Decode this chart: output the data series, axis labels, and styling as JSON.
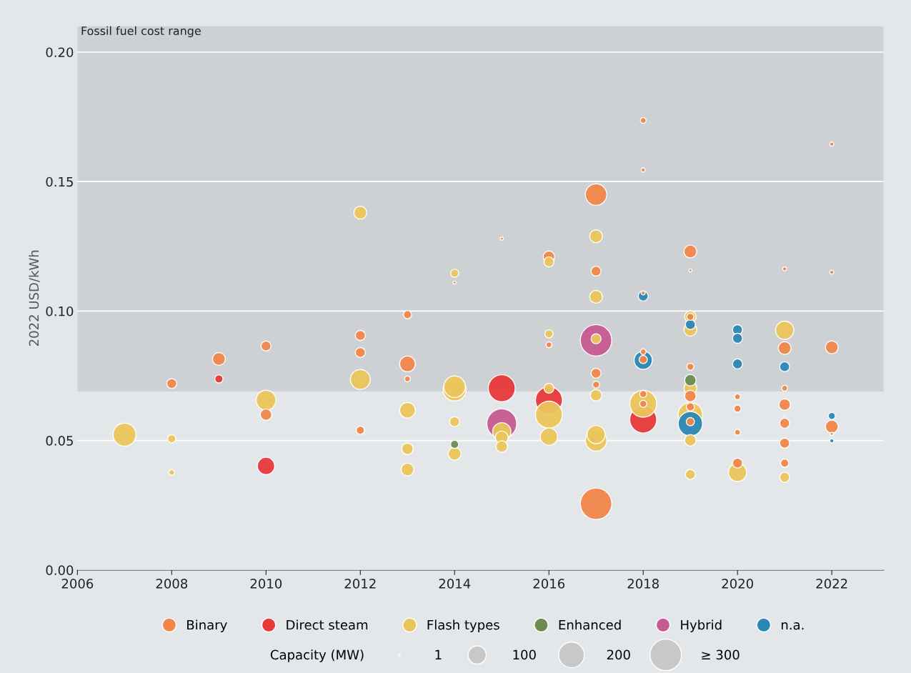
{
  "chart_data": {
    "type": "bubble",
    "ylabel": "2022 USD/kWh",
    "xlim": [
      2006,
      2023.1
    ],
    "xticks": [
      2006,
      2008,
      2010,
      2012,
      2014,
      2016,
      2018,
      2020,
      2022
    ],
    "ylim": [
      0,
      0.21
    ],
    "yticks": [
      {
        "value": 0,
        "label": "0.00"
      },
      {
        "value": 0.05,
        "label": "0.05"
      },
      {
        "value": 0.1,
        "label": "0.10"
      },
      {
        "value": 0.15,
        "label": "0.15"
      },
      {
        "value": 0.2,
        "label": "0.20"
      }
    ],
    "grid": "y",
    "legend": "bottom",
    "marker": "circle",
    "legend_title": "Capacity (MW)",
    "size_legend": [
      1,
      100,
      200,
      {
        "value": 300,
        "label": "≥ 300"
      }
    ],
    "bands": [
      {
        "axis": "y",
        "from": 0.069,
        "to": 0.21,
        "label": "Fossil fuel cost range",
        "color": "#cdd1d4"
      }
    ],
    "series": [
      {
        "name": "Binary",
        "color": "#f0864a",
        "x": [
          2008,
          2009,
          2010,
          2010,
          2012,
          2012,
          2012,
          2013,
          2013,
          2013,
          2014,
          2015,
          2016,
          2016,
          2017,
          2017,
          2017,
          2017,
          2017,
          2018,
          2018,
          2018,
          2018,
          2018,
          2018,
          2018,
          2019,
          2019,
          2019,
          2019,
          2019,
          2019,
          2019,
          2020,
          2020,
          2020,
          2020,
          2021,
          2021,
          2021,
          2021,
          2021,
          2021,
          2021,
          2021,
          2022,
          2022,
          2022,
          2022,
          2022
        ],
        "values": [
          0.072,
          0.0815,
          0.0865,
          0.06,
          0.0906,
          0.084,
          0.054,
          0.0986,
          0.0796,
          0.0738,
          0.111,
          0.128,
          0.121,
          0.087,
          0.145,
          0.1154,
          0.076,
          0.0716,
          0.0256,
          0.1736,
          0.1545,
          0.107,
          0.0843,
          0.0813,
          0.068,
          0.0642,
          0.123,
          0.1157,
          0.0978,
          0.0785,
          0.0672,
          0.063,
          0.0573,
          0.0669,
          0.0623,
          0.0532,
          0.0413,
          0.1163,
          0.0857,
          0.0702,
          0.0639,
          0.0598,
          0.0567,
          0.049,
          0.0413,
          0.1645,
          0.115,
          0.086,
          0.0554,
          0.0526
        ],
        "sizes": [
          30,
          50,
          30,
          40,
          30,
          30,
          20,
          20,
          75,
          10,
          3,
          3,
          40,
          10,
          140,
          30,
          30,
          15,
          300,
          10,
          5,
          5,
          10,
          20,
          15,
          15,
          50,
          3,
          15,
          15,
          40,
          20,
          20,
          10,
          15,
          10,
          30,
          5,
          50,
          10,
          40,
          1,
          30,
          30,
          20,
          5,
          5,
          50,
          50,
          3
        ]
      },
      {
        "name": "Direct steam",
        "color": "#e8383a",
        "x": [
          2009,
          2010,
          2015,
          2016,
          2018
        ],
        "values": [
          0.0738,
          0.0402,
          0.0702,
          0.0656,
          0.0581
        ],
        "sizes": [
          20,
          90,
          220,
          220,
          220
        ]
      },
      {
        "name": "Flash types",
        "color": "#eac55a",
        "x": [
          2007,
          2008,
          2008,
          2010,
          2012,
          2012,
          2013,
          2013,
          2013,
          2014,
          2014,
          2014,
          2014,
          2014,
          2015,
          2015,
          2015,
          2016,
          2016,
          2016,
          2016,
          2016,
          2017,
          2017,
          2017,
          2017,
          2017,
          2017,
          2018,
          2019,
          2019,
          2019,
          2019,
          2019,
          2019,
          2020,
          2021,
          2021
        ],
        "values": [
          0.0523,
          0.0507,
          0.0377,
          0.0656,
          0.138,
          0.0736,
          0.0617,
          0.0468,
          0.0388,
          0.1146,
          0.0697,
          0.0708,
          0.0573,
          0.0449,
          0.0534,
          0.0512,
          0.0477,
          0.119,
          0.0912,
          0.0702,
          0.06,
          0.0515,
          0.1289,
          0.1055,
          0.0893,
          0.0675,
          0.0501,
          0.0523,
          0.0642,
          0.0978,
          0.0928,
          0.0702,
          0.06,
          0.0501,
          0.0369,
          0.0377,
          0.0926,
          0.0358
        ],
        "sizes": [
          160,
          20,
          10,
          120,
          50,
          120,
          75,
          40,
          50,
          20,
          160,
          140,
          30,
          50,
          100,
          50,
          40,
          30,
          20,
          30,
          220,
          90,
          50,
          50,
          30,
          40,
          140,
          100,
          220,
          40,
          50,
          50,
          180,
          40,
          30,
          100,
          100,
          30
        ]
      },
      {
        "name": "Enhanced",
        "color": "#6e8b52",
        "x": [
          2014,
          2019
        ],
        "values": [
          0.0485,
          0.0733
        ],
        "sizes": [
          20,
          40
        ]
      },
      {
        "name": "Hybrid",
        "color": "#c65b91",
        "x": [
          2015,
          2017
        ],
        "values": [
          0.0565,
          0.0887
        ],
        "sizes": [
          270,
          300
        ]
      },
      {
        "name": "n.a.",
        "color": "#2b87b4",
        "x": [
          2018,
          2018,
          2019,
          2019,
          2020,
          2020,
          2020,
          2021,
          2022,
          2022
        ],
        "values": [
          0.1058,
          0.081,
          0.0948,
          0.0565,
          0.0928,
          0.0895,
          0.0796,
          0.0785,
          0.0595,
          0.0499
        ],
        "sizes": [
          30,
          100,
          30,
          180,
          30,
          30,
          30,
          30,
          15,
          5
        ]
      }
    ]
  }
}
